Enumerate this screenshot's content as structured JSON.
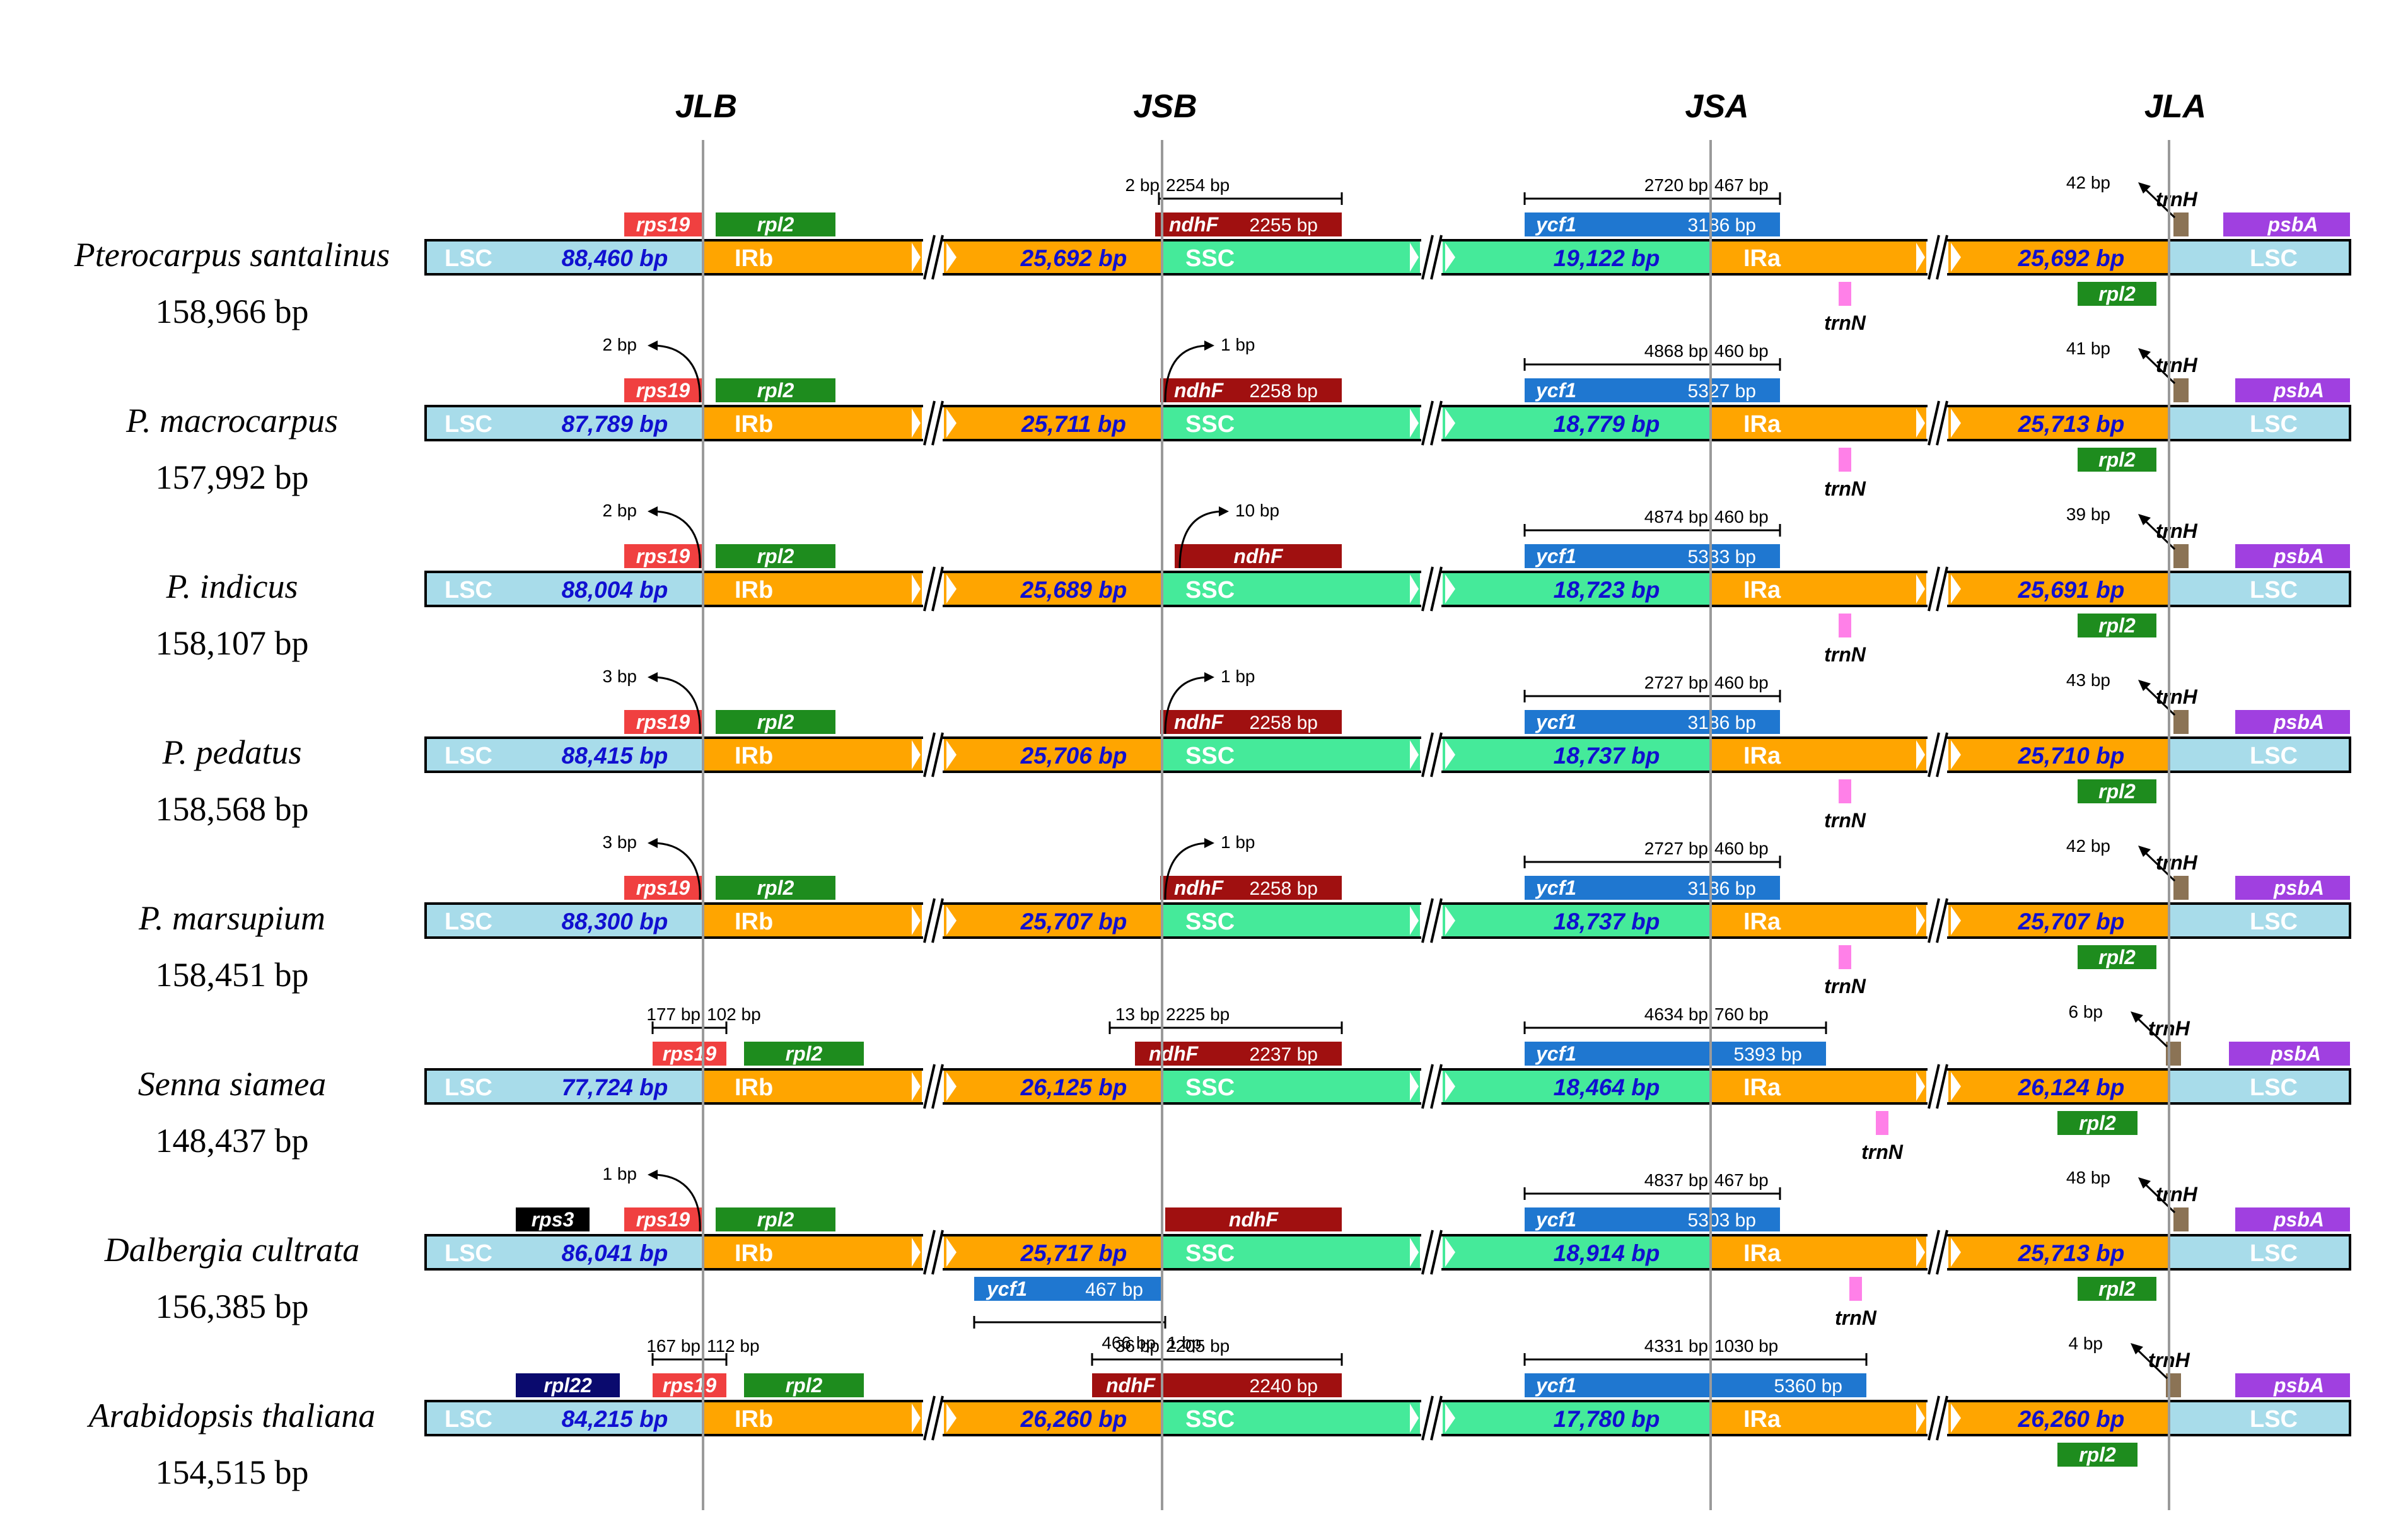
{
  "junctions": [
    "JLB",
    "JSB",
    "JSA",
    "JLA"
  ],
  "region_labels": {
    "lsc": "LSC",
    "irb": "IRb",
    "ssc": "SSC",
    "ira": "IRa"
  },
  "colors": {
    "lsc": "#a8dcea",
    "ir": "#ffa500",
    "ssc": "#45ea9a",
    "rps19": "#f04040",
    "rpl2": "#1e8c1e",
    "ndhF": "#a01010",
    "ycf1": "#1f77d0",
    "psbA": "#a040e0",
    "trnH": "#8b7355",
    "trnN": "#ff80e8",
    "rps3": "#000000",
    "rpl22": "#0a0a6e",
    "lengthText": "#1010d0"
  },
  "species": [
    {
      "name": "Pterocarpus santalinus",
      "size": "158,966 bp",
      "lsc": "88,460 bp",
      "irb": "25,692 bp",
      "ssc": "19,122 bp",
      "ira": "25,692 bp",
      "jlb_ann": "",
      "jlb_ann2": "",
      "jsb_ann": "2 bp",
      "jsb_ann2": "2254 bp",
      "ndhF_len": "2255 bp",
      "ycf1_ann": "2720 bp",
      "ycf1_ann2": "467 bp",
      "ycf1_len": "3186 bp",
      "trnH_ann": "42 bp",
      "extra_ann": "",
      "extra_ann2": "",
      "extra_len": ""
    },
    {
      "name": "P. macrocarpus",
      "size": "157,992 bp",
      "lsc": "87,789 bp",
      "irb": "25,711 bp",
      "ssc": "18,779 bp",
      "ira": "25,713 bp",
      "jlb_ann": "2 bp",
      "jlb_ann2": "",
      "jsb_ann": "1 bp",
      "jsb_ann2": "",
      "ndhF_len": "2258 bp",
      "ycf1_ann": "4868 bp",
      "ycf1_ann2": "460 bp",
      "ycf1_len": "5327 bp",
      "trnH_ann": "41 bp",
      "extra_ann": "",
      "extra_ann2": "",
      "extra_len": ""
    },
    {
      "name": "P. indicus",
      "size": "158,107 bp",
      "lsc": "88,004 bp",
      "irb": "25,689 bp",
      "ssc": "18,723 bp",
      "ira": "25,691 bp",
      "jlb_ann": "2 bp",
      "jlb_ann2": "",
      "jsb_ann": "10 bp",
      "jsb_ann2": "",
      "ndhF_len": "",
      "ycf1_ann": "4874 bp",
      "ycf1_ann2": "460 bp",
      "ycf1_len": "5333 bp",
      "trnH_ann": "39 bp",
      "extra_ann": "",
      "extra_ann2": "",
      "extra_len": ""
    },
    {
      "name": "P. pedatus",
      "size": "158,568 bp",
      "lsc": "88,415 bp",
      "irb": "25,706 bp",
      "ssc": "18,737 bp",
      "ira": "25,710 bp",
      "jlb_ann": "3 bp",
      "jlb_ann2": "",
      "jsb_ann": "1 bp",
      "jsb_ann2": "",
      "ndhF_len": "2258 bp",
      "ycf1_ann": "2727 bp",
      "ycf1_ann2": "460 bp",
      "ycf1_len": "3186 bp",
      "trnH_ann": "43 bp",
      "extra_ann": "",
      "extra_ann2": "",
      "extra_len": ""
    },
    {
      "name": "P. marsupium",
      "size": "158,451 bp",
      "lsc": "88,300 bp",
      "irb": "25,707 bp",
      "ssc": "18,737 bp",
      "ira": "25,707 bp",
      "jlb_ann": "3 bp",
      "jlb_ann2": "",
      "jsb_ann": "1 bp",
      "jsb_ann2": "",
      "ndhF_len": "2258 bp",
      "ycf1_ann": "2727 bp",
      "ycf1_ann2": "460 bp",
      "ycf1_len": "3186 bp",
      "trnH_ann": "42 bp",
      "extra_ann": "",
      "extra_ann2": "",
      "extra_len": ""
    },
    {
      "name": "Senna siamea",
      "size": "148,437 bp",
      "lsc": "77,724 bp",
      "irb": "26,125 bp",
      "ssc": "18,464 bp",
      "ira": "26,124 bp",
      "jlb_ann": "177 bp",
      "jlb_ann2": "102 bp",
      "jsb_ann": "13 bp",
      "jsb_ann2": "2225 bp",
      "ndhF_len": "2237 bp",
      "ycf1_ann": "4634 bp",
      "ycf1_ann2": "760 bp",
      "ycf1_len": "5393 bp",
      "trnH_ann": "6 bp",
      "extra_ann": "",
      "extra_ann2": "",
      "extra_len": ""
    },
    {
      "name": "Dalbergia cultrata",
      "size": "156,385 bp",
      "lsc": "86,041 bp",
      "irb": "25,717 bp",
      "ssc": "18,914 bp",
      "ira": "25,713 bp",
      "jlb_ann": "1 bp",
      "jlb_ann2": "",
      "jsb_ann": "",
      "jsb_ann2": "",
      "ndhF_len": "",
      "ycf1_ann": "4837 bp",
      "ycf1_ann2": "467 bp",
      "ycf1_len": "5303 bp",
      "trnH_ann": "48 bp",
      "extra_ann": "466 bp",
      "extra_ann2": "1 bp",
      "extra_len": "467 bp"
    },
    {
      "name": "Arabidopsis thaliana",
      "size": "154,515 bp",
      "lsc": "84,215 bp",
      "irb": "26,260 bp",
      "ssc": "17,780 bp",
      "ira": "26,260 bp",
      "jlb_ann": "167 bp",
      "jlb_ann2": "112 bp",
      "jsb_ann": "36 bp",
      "jsb_ann2": "2205 bp",
      "ndhF_len": "2240 bp",
      "ycf1_ann": "4331 bp",
      "ycf1_ann2": "1030 bp",
      "ycf1_len": "5360 bp",
      "trnH_ann": "4 bp",
      "extra_ann": "",
      "extra_ann2": "",
      "extra_len": ""
    }
  ],
  "genes": {
    "rps19": "rps19",
    "rpl2": "rpl2",
    "ndhF": "ndhF",
    "ycf1": "ycf1",
    "trnH": "trnH",
    "trnN": "trnN",
    "psbA": "psbA",
    "rps3": "rps3",
    "rpl22": "rpl22"
  }
}
